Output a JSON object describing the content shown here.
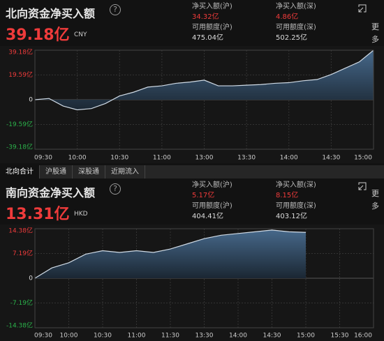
{
  "panels": [
    {
      "title": "北向资金净买入额",
      "help": "?",
      "total": "39.18亿",
      "currency": "CNY",
      "more": "更多",
      "stats": [
        [
          "净买入额(沪)",
          "34.32亿",
          "可用额度(沪)",
          "475.04亿"
        ],
        [
          "净买入额(深)",
          "4.86亿",
          "可用额度(深)",
          "502.25亿"
        ]
      ]
    },
    {
      "title": "南向资金净买入额",
      "help": "?",
      "total": "13.31亿",
      "currency": "HKD",
      "more": "更多",
      "stats": [
        [
          "净买入额(沪)",
          "5.17亿",
          "可用额度(沪)",
          "404.41亿"
        ],
        [
          "净买入额(深)",
          "8.15亿",
          "可用额度(深)",
          "403.12亿"
        ]
      ]
    }
  ],
  "tabs": [
    "北向合计",
    "沪股通",
    "深股通",
    "近期流入"
  ],
  "chart_data": [
    {
      "type": "area",
      "color": "#d0dbe6",
      "categories": [
        "09:30",
        null,
        null,
        "10:00",
        null,
        null,
        "10:30",
        null,
        null,
        "11:00",
        null,
        null,
        "13:00",
        null,
        null,
        "13:30",
        null,
        null,
        "14:00",
        null,
        null,
        "14:30",
        null,
        null,
        "15:00"
      ],
      "values": [
        0,
        1,
        -5,
        -8,
        -7,
        -3,
        3,
        6,
        10,
        11,
        13,
        14,
        15.5,
        11,
        11,
        11.5,
        12,
        13,
        13.5,
        15,
        16,
        20,
        25,
        30,
        39.18
      ],
      "ylim": [
        -39.18,
        39.18
      ],
      "yticks": [
        {
          "value": -39.18,
          "label": "-39.18亿"
        },
        {
          "value": -19.59,
          "label": "-19.59亿"
        },
        0,
        {
          "value": 19.59,
          "label": "19.59亿"
        },
        {
          "value": 39.18,
          "label": "39.18亿"
        }
      ],
      "grid": true
    },
    {
      "type": "area",
      "color": "#d0dbe6",
      "categories": [
        "09:30",
        null,
        "10:00",
        null,
        "10:30",
        null,
        "11:00",
        null,
        "11:30",
        null,
        "13:30",
        null,
        "14:00",
        null,
        "14:30",
        null,
        "15:00",
        null,
        "15:30",
        null,
        "16:00"
      ],
      "values": [
        0,
        3,
        4.5,
        7,
        8,
        7.5,
        8,
        7.5,
        8.5,
        10,
        11.5,
        12.5,
        13,
        13.5,
        14,
        13.5,
        13.31,
        null,
        null,
        null,
        null
      ],
      "ylim": [
        -14.38,
        14.38
      ],
      "yticks": [
        {
          "value": -14.38,
          "label": "-14.38亿"
        },
        {
          "value": -7.19,
          "label": "-7.19亿"
        },
        0,
        {
          "value": 7.19,
          "label": "7.19亿"
        },
        {
          "value": 14.38,
          "label": "14.38亿"
        }
      ],
      "grid": true
    }
  ]
}
